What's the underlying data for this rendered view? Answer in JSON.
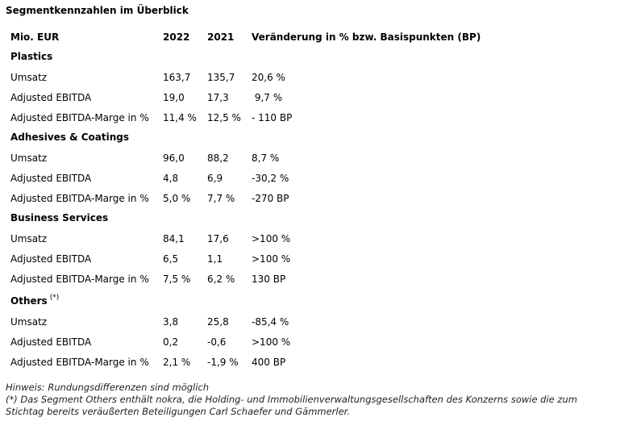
{
  "title": "Segmentkennzahlen im Überblick",
  "headers": {
    "label": "Mio. EUR",
    "y2022": "2022",
    "y2021": "2021",
    "change": "Veränderung in % bzw. Basispunkten (BP)"
  },
  "segments": [
    {
      "name": "Plastics",
      "rows": [
        {
          "label": "Umsatz",
          "v2022": "163,7",
          "v2021": "135,7",
          "change": "20,6 %"
        },
        {
          "label": "Adjusted EBITDA",
          "v2022": "19,0",
          "v2021": "17,3",
          "change": " 9,7 %"
        },
        {
          "label": "Adjusted EBITDA-Marge in %",
          "v2022": "11,4 %",
          "v2021": "12,5 %",
          "change": "- 110 BP"
        }
      ]
    },
    {
      "name": "Adhesives & Coatings",
      "rows": [
        {
          "label": "Umsatz",
          "v2022": "96,0",
          "v2021": "88,2",
          "change": "8,7 %"
        },
        {
          "label": "Adjusted EBITDA",
          "v2022": "4,8",
          "v2021": "6,9",
          "change": "-30,2 %"
        },
        {
          "label": "Adjusted EBITDA-Marge in %",
          "v2022": "5,0 %",
          "v2021": "7,7 %",
          "change": "-270 BP"
        }
      ]
    },
    {
      "name": "Business Services",
      "rows": [
        {
          "label": "Umsatz",
          "v2022": "84,1",
          "v2021": "17,6",
          "change": ">100 %"
        },
        {
          "label": "Adjusted EBITDA",
          "v2022": "6,5",
          "v2021": "1,1",
          "change": ">100 %"
        },
        {
          "label": "Adjusted EBITDA-Marge in %",
          "v2022": "7,5 %",
          "v2021": "6,2 %",
          "change": "130 BP"
        }
      ]
    },
    {
      "name": "Others",
      "name_sup": "(*)",
      "rows": [
        {
          "label": "Umsatz",
          "v2022": "3,8",
          "v2021": "25,8",
          "change": "-85,4 %"
        },
        {
          "label": "Adjusted EBITDA",
          "v2022": "0,2",
          "v2021": "-0,6",
          "change": ">100 %"
        },
        {
          "label": "Adjusted EBITDA-Marge in %",
          "v2022": "2,1 %",
          "v2021": "-1,9 %",
          "change": "400 BP"
        }
      ]
    }
  ],
  "notes": {
    "line1": "Hinweis: Rundungsdifferenzen sind möglich",
    "line2": "(*) Das Segment Others enthält nokra, die Holding- und Immobilienverwaltungsgesellschaften des Konzerns sowie die zum Stichtag bereits veräußerten Beteiligungen Carl Schaefer und Gämmerler."
  }
}
